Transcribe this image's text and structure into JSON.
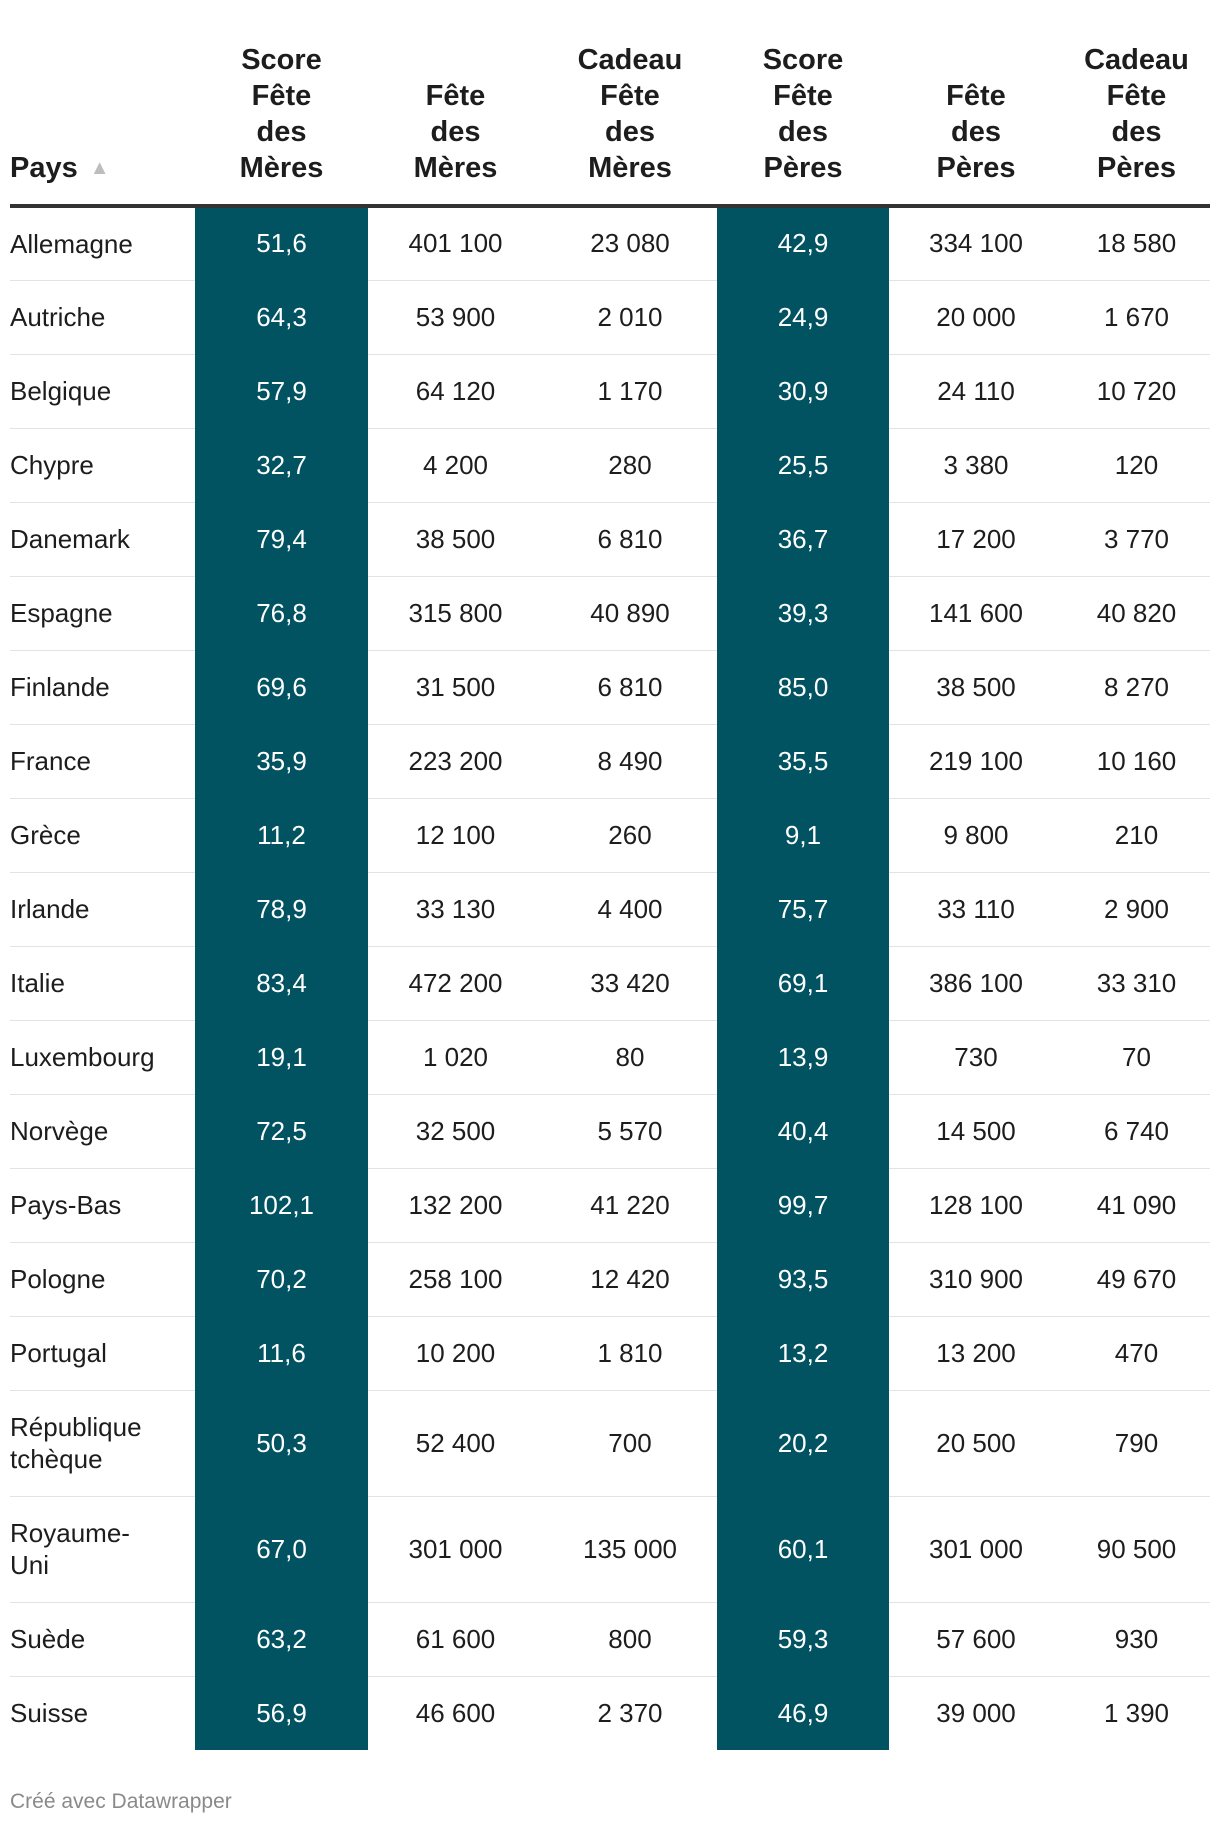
{
  "chart_data": {
    "type": "table",
    "columns": [
      {
        "key": "pays",
        "label": [
          "Pays"
        ],
        "sorted": "ascending"
      },
      {
        "key": "score_meres",
        "label": [
          "Score",
          "Fête",
          "des",
          "Mères"
        ]
      },
      {
        "key": "fete_meres",
        "label": [
          "Fête",
          "des",
          "Mères"
        ]
      },
      {
        "key": "cadeau_meres",
        "label": [
          "Cadeau",
          "Fête",
          "des",
          "Mères"
        ]
      },
      {
        "key": "score_peres",
        "label": [
          "Score",
          "Fête",
          "des",
          "Pères"
        ]
      },
      {
        "key": "fete_peres",
        "label": [
          "Fête",
          "des",
          "Pères"
        ]
      },
      {
        "key": "cadeau_peres",
        "label": [
          "Cadeau",
          "Fête",
          "des",
          "Pères"
        ]
      }
    ],
    "rows": [
      {
        "pays": [
          "Allemagne"
        ],
        "score_meres": "51,6",
        "fete_meres": "401 100",
        "cadeau_meres": "23 080",
        "score_peres": "42,9",
        "fete_peres": "334 100",
        "cadeau_peres": "18 580"
      },
      {
        "pays": [
          "Autriche"
        ],
        "score_meres": "64,3",
        "fete_meres": "53 900",
        "cadeau_meres": "2 010",
        "score_peres": "24,9",
        "fete_peres": "20 000",
        "cadeau_peres": "1 670"
      },
      {
        "pays": [
          "Belgique"
        ],
        "score_meres": "57,9",
        "fete_meres": "64 120",
        "cadeau_meres": "1 170",
        "score_peres": "30,9",
        "fete_peres": "24 110",
        "cadeau_peres": "10 720"
      },
      {
        "pays": [
          "Chypre"
        ],
        "score_meres": "32,7",
        "fete_meres": "4 200",
        "cadeau_meres": "280",
        "score_peres": "25,5",
        "fete_peres": "3 380",
        "cadeau_peres": "120"
      },
      {
        "pays": [
          "Danemark"
        ],
        "score_meres": "79,4",
        "fete_meres": "38 500",
        "cadeau_meres": "6 810",
        "score_peres": "36,7",
        "fete_peres": "17 200",
        "cadeau_peres": "3 770"
      },
      {
        "pays": [
          "Espagne"
        ],
        "score_meres": "76,8",
        "fete_meres": "315 800",
        "cadeau_meres": "40 890",
        "score_peres": "39,3",
        "fete_peres": "141 600",
        "cadeau_peres": "40 820"
      },
      {
        "pays": [
          "Finlande"
        ],
        "score_meres": "69,6",
        "fete_meres": "31 500",
        "cadeau_meres": "6 810",
        "score_peres": "85,0",
        "fete_peres": "38 500",
        "cadeau_peres": "8 270"
      },
      {
        "pays": [
          "France"
        ],
        "score_meres": "35,9",
        "fete_meres": "223 200",
        "cadeau_meres": "8 490",
        "score_peres": "35,5",
        "fete_peres": "219 100",
        "cadeau_peres": "10 160"
      },
      {
        "pays": [
          "Grèce"
        ],
        "score_meres": "11,2",
        "fete_meres": "12 100",
        "cadeau_meres": "260",
        "score_peres": "9,1",
        "fete_peres": "9 800",
        "cadeau_peres": "210"
      },
      {
        "pays": [
          "Irlande"
        ],
        "score_meres": "78,9",
        "fete_meres": "33 130",
        "cadeau_meres": "4 400",
        "score_peres": "75,7",
        "fete_peres": "33 110",
        "cadeau_peres": "2 900"
      },
      {
        "pays": [
          "Italie"
        ],
        "score_meres": "83,4",
        "fete_meres": "472 200",
        "cadeau_meres": "33 420",
        "score_peres": "69,1",
        "fete_peres": "386 100",
        "cadeau_peres": "33 310"
      },
      {
        "pays": [
          "Luxembourg"
        ],
        "score_meres": "19,1",
        "fete_meres": "1 020",
        "cadeau_meres": "80",
        "score_peres": "13,9",
        "fete_peres": "730",
        "cadeau_peres": "70"
      },
      {
        "pays": [
          "Norvège"
        ],
        "score_meres": "72,5",
        "fete_meres": "32 500",
        "cadeau_meres": "5 570",
        "score_peres": "40,4",
        "fete_peres": "14 500",
        "cadeau_peres": "6 740"
      },
      {
        "pays": [
          "Pays-Bas"
        ],
        "score_meres": "102,1",
        "fete_meres": "132 200",
        "cadeau_meres": "41 220",
        "score_peres": "99,7",
        "fete_peres": "128 100",
        "cadeau_peres": "41 090"
      },
      {
        "pays": [
          "Pologne"
        ],
        "score_meres": "70,2",
        "fete_meres": "258 100",
        "cadeau_meres": "12 420",
        "score_peres": "93,5",
        "fete_peres": "310 900",
        "cadeau_peres": "49 670"
      },
      {
        "pays": [
          "Portugal"
        ],
        "score_meres": "11,6",
        "fete_meres": "10 200",
        "cadeau_meres": "1 810",
        "score_peres": "13,2",
        "fete_peres": "13 200",
        "cadeau_peres": "470"
      },
      {
        "pays": [
          "République",
          "tchèque"
        ],
        "score_meres": "50,3",
        "fete_meres": "52 400",
        "cadeau_meres": "700",
        "score_peres": "20,2",
        "fete_peres": "20 500",
        "cadeau_peres": "790"
      },
      {
        "pays": [
          "Royaume-",
          "Uni"
        ],
        "score_meres": "67,0",
        "fete_meres": "301 000",
        "cadeau_meres": "135 000",
        "score_peres": "60,1",
        "fete_peres": "301 000",
        "cadeau_peres": "90 500"
      },
      {
        "pays": [
          "Suède"
        ],
        "score_meres": "63,2",
        "fete_meres": "61 600",
        "cadeau_meres": "800",
        "score_peres": "59,3",
        "fete_peres": "57 600",
        "cadeau_peres": "930"
      },
      {
        "pays": [
          "Suisse"
        ],
        "score_meres": "56,9",
        "fete_meres": "46 600",
        "cadeau_meres": "2 370",
        "score_peres": "46,9",
        "fete_peres": "39 000",
        "cadeau_peres": "1 390"
      }
    ],
    "highlight_columns": [
      "score_meres",
      "score_peres"
    ],
    "highlight_color": "#015362"
  },
  "footer": {
    "credit": "Créé avec Datawrapper"
  },
  "icons": {
    "sort": "sort-ascending-icon"
  }
}
